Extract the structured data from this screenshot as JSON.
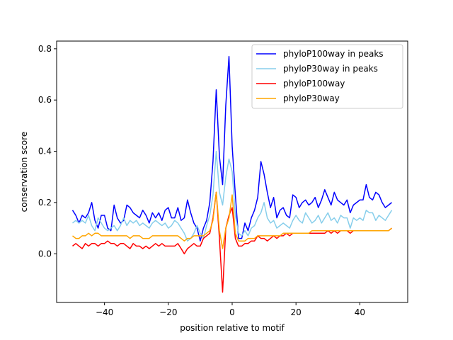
{
  "chart_data": {
    "type": "line",
    "title": "",
    "xlabel": "position relative to motif",
    "ylabel": "conservation score",
    "xlim": [
      -55,
      55
    ],
    "ylim": [
      -0.19,
      0.83
    ],
    "xticks": [
      -40,
      -20,
      0,
      20,
      40
    ],
    "xtick_labels": [
      "−40",
      "−20",
      "0",
      "20",
      "40"
    ],
    "yticks": [
      0.0,
      0.2,
      0.4,
      0.6,
      0.8
    ],
    "ytick_labels": [
      "0.0",
      "0.2",
      "0.4",
      "0.6",
      "0.8"
    ],
    "grid": false,
    "legend_position": "top-right",
    "x": [
      -50,
      -49,
      -48,
      -47,
      -46,
      -45,
      -44,
      -43,
      -42,
      -41,
      -40,
      -39,
      -38,
      -37,
      -36,
      -35,
      -34,
      -33,
      -32,
      -31,
      -30,
      -29,
      -28,
      -27,
      -26,
      -25,
      -24,
      -23,
      -22,
      -21,
      -20,
      -19,
      -18,
      -17,
      -16,
      -15,
      -14,
      -13,
      -12,
      -11,
      -10,
      -9,
      -8,
      -7,
      -6,
      -5,
      -4,
      -3,
      -2,
      -1,
      0,
      1,
      2,
      3,
      4,
      5,
      6,
      7,
      8,
      9,
      10,
      11,
      12,
      13,
      14,
      15,
      16,
      17,
      18,
      19,
      20,
      21,
      22,
      23,
      24,
      25,
      26,
      27,
      28,
      29,
      30,
      31,
      32,
      33,
      34,
      35,
      36,
      37,
      38,
      39,
      40,
      41,
      42,
      43,
      44,
      45,
      46,
      47,
      48,
      49,
      50
    ],
    "series": [
      {
        "name": "phyloP100way in peaks",
        "color": "#0000ff",
        "values": [
          0.17,
          0.15,
          0.12,
          0.15,
          0.14,
          0.16,
          0.2,
          0.13,
          0.1,
          0.15,
          0.15,
          0.1,
          0.09,
          0.19,
          0.14,
          0.12,
          0.13,
          0.19,
          0.18,
          0.16,
          0.15,
          0.14,
          0.17,
          0.15,
          0.12,
          0.16,
          0.14,
          0.16,
          0.13,
          0.17,
          0.18,
          0.14,
          0.14,
          0.18,
          0.13,
          0.14,
          0.21,
          0.16,
          0.12,
          0.1,
          0.05,
          0.1,
          0.13,
          0.2,
          0.36,
          0.64,
          0.38,
          0.27,
          0.58,
          0.77,
          0.42,
          0.23,
          0.06,
          0.06,
          0.12,
          0.09,
          0.14,
          0.17,
          0.22,
          0.36,
          0.31,
          0.24,
          0.18,
          0.22,
          0.14,
          0.17,
          0.18,
          0.15,
          0.14,
          0.23,
          0.22,
          0.18,
          0.2,
          0.21,
          0.19,
          0.2,
          0.22,
          0.18,
          0.21,
          0.25,
          0.22,
          0.19,
          0.24,
          0.21,
          0.2,
          0.19,
          0.21,
          0.16,
          0.19,
          0.2,
          0.21,
          0.21,
          0.27,
          0.22,
          0.21,
          0.24,
          0.23,
          0.2,
          0.18,
          0.19,
          0.2
        ]
      },
      {
        "name": "phyloP30way in peaks",
        "color": "#87ceeb",
        "values": [
          0.12,
          0.13,
          0.12,
          0.13,
          0.12,
          0.15,
          0.11,
          0.09,
          0.14,
          0.12,
          0.1,
          0.09,
          0.1,
          0.11,
          0.09,
          0.11,
          0.14,
          0.11,
          0.13,
          0.12,
          0.13,
          0.11,
          0.12,
          0.11,
          0.1,
          0.12,
          0.13,
          0.12,
          0.11,
          0.12,
          0.1,
          0.11,
          0.13,
          0.12,
          0.1,
          0.08,
          0.05,
          0.06,
          0.08,
          0.11,
          0.08,
          0.06,
          0.11,
          0.15,
          0.23,
          0.4,
          0.24,
          0.19,
          0.3,
          0.37,
          0.32,
          0.15,
          0.08,
          0.07,
          0.09,
          0.07,
          0.1,
          0.11,
          0.14,
          0.16,
          0.2,
          0.14,
          0.12,
          0.13,
          0.1,
          0.11,
          0.12,
          0.11,
          0.1,
          0.13,
          0.15,
          0.13,
          0.12,
          0.16,
          0.14,
          0.12,
          0.13,
          0.15,
          0.12,
          0.14,
          0.16,
          0.13,
          0.14,
          0.12,
          0.15,
          0.14,
          0.14,
          0.1,
          0.14,
          0.13,
          0.14,
          0.13,
          0.17,
          0.16,
          0.16,
          0.13,
          0.15,
          0.14,
          0.13,
          0.15,
          0.17
        ]
      },
      {
        "name": "phyloP100way",
        "color": "#ff0000",
        "values": [
          0.03,
          0.04,
          0.03,
          0.02,
          0.04,
          0.03,
          0.04,
          0.04,
          0.03,
          0.04,
          0.04,
          0.05,
          0.04,
          0.04,
          0.03,
          0.04,
          0.04,
          0.03,
          0.02,
          0.04,
          0.03,
          0.03,
          0.02,
          0.03,
          0.02,
          0.03,
          0.04,
          0.03,
          0.04,
          0.03,
          0.03,
          0.03,
          0.03,
          0.04,
          0.02,
          0.0,
          0.02,
          0.03,
          0.04,
          0.03,
          0.03,
          0.06,
          0.07,
          0.08,
          0.14,
          0.24,
          0.06,
          -0.15,
          0.1,
          0.15,
          0.18,
          0.06,
          0.03,
          0.03,
          0.04,
          0.04,
          0.05,
          0.05,
          0.07,
          0.06,
          0.06,
          0.05,
          0.06,
          0.07,
          0.06,
          0.07,
          0.07,
          0.08,
          0.07,
          0.08,
          0.08,
          0.08,
          0.08,
          0.08,
          0.08,
          0.08,
          0.08,
          0.08,
          0.08,
          0.08,
          0.09,
          0.08,
          0.09,
          0.08,
          0.09,
          0.09,
          0.09,
          0.08,
          0.09,
          0.09,
          0.09,
          0.09,
          0.09,
          0.09,
          0.09,
          0.09,
          0.09,
          0.09,
          0.09,
          0.09,
          0.1
        ]
      },
      {
        "name": "phyloP30way",
        "color": "#ffa500",
        "values": [
          0.07,
          0.06,
          0.06,
          0.07,
          0.07,
          0.08,
          0.07,
          0.08,
          0.08,
          0.07,
          0.07,
          0.07,
          0.07,
          0.07,
          0.07,
          0.07,
          0.07,
          0.07,
          0.06,
          0.07,
          0.07,
          0.07,
          0.06,
          0.06,
          0.06,
          0.07,
          0.07,
          0.07,
          0.07,
          0.07,
          0.07,
          0.07,
          0.07,
          0.07,
          0.06,
          0.05,
          0.06,
          0.06,
          0.07,
          0.07,
          0.07,
          0.07,
          0.08,
          0.09,
          0.13,
          0.24,
          0.09,
          0.02,
          0.1,
          0.14,
          0.23,
          0.08,
          0.05,
          0.05,
          0.05,
          0.06,
          0.06,
          0.06,
          0.07,
          0.07,
          0.07,
          0.07,
          0.07,
          0.07,
          0.07,
          0.07,
          0.08,
          0.08,
          0.08,
          0.08,
          0.08,
          0.08,
          0.08,
          0.08,
          0.08,
          0.09,
          0.09,
          0.09,
          0.09,
          0.09,
          0.09,
          0.09,
          0.09,
          0.09,
          0.09,
          0.09,
          0.09,
          0.09,
          0.09,
          0.09,
          0.09,
          0.09,
          0.09,
          0.09,
          0.09,
          0.09,
          0.09,
          0.09,
          0.09,
          0.09,
          0.1
        ]
      }
    ]
  }
}
